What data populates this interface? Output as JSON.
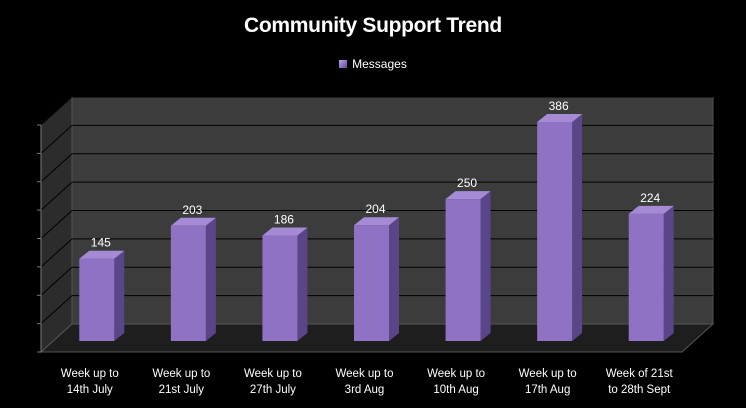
{
  "chart_data": {
    "type": "bar",
    "title": "Community Support Trend",
    "categories": [
      "Week up to\n14th July",
      "Week up to\n21st July",
      "Week up to\n27th July",
      "Week up to\n3rd Aug",
      "Week up to\n10th Aug",
      "Week up to\n17th Aug",
      "Week of 21st\nto 28th Sept"
    ],
    "series": [
      {
        "name": "Messages",
        "values": [
          145,
          203,
          186,
          204,
          250,
          386,
          224
        ]
      }
    ],
    "data_labels": [
      "145",
      "203",
      "186",
      "204",
      "250",
      "386",
      "224"
    ],
    "ylim": [
      0,
      400
    ],
    "y_tick_step": 50,
    "grid": true,
    "legend_position": "top-center",
    "three_d": true,
    "colors": {
      "background": "#000000",
      "plot_back_wall": "#3c3c3c",
      "plot_side_wall": "#2c2c2c",
      "plot_floor": "#1e1e1e",
      "gridline": "#000000",
      "bar_front": "#8f72c4",
      "bar_side": "#5b4589",
      "bar_top": "#a58bd6",
      "text": "#ffffff"
    }
  }
}
